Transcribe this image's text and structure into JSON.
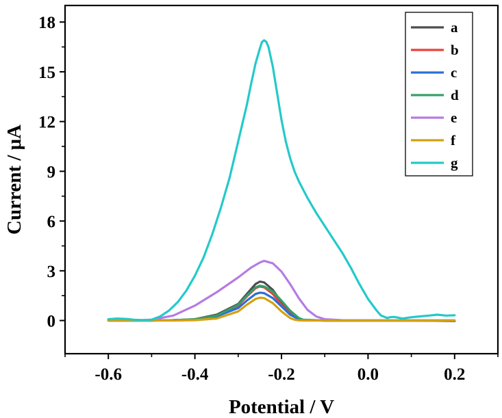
{
  "chart_data": {
    "type": "line",
    "xlabel": "Potential / V",
    "ylabel": "Current / μA",
    "xlim": [
      -0.7,
      0.3
    ],
    "ylim": [
      -2,
      19
    ],
    "x_ticks": [
      "-0.6",
      "-0.4",
      "-0.2",
      "0.0",
      "0.2"
    ],
    "x_tick_values": [
      -0.6,
      -0.4,
      -0.2,
      0.0,
      0.2
    ],
    "y_ticks": [
      "0",
      "3",
      "6",
      "9",
      "12",
      "15",
      "18"
    ],
    "y_tick_values": [
      0,
      3,
      6,
      9,
      12,
      15,
      18
    ],
    "grid": false,
    "legend_position": "top-right",
    "series": [
      {
        "name": "a",
        "color": "#4d4d4d",
        "x": [
          -0.6,
          -0.5,
          -0.45,
          -0.4,
          -0.35,
          -0.3,
          -0.28,
          -0.26,
          -0.25,
          -0.24,
          -0.22,
          -0.2,
          -0.18,
          -0.16,
          -0.15,
          -0.1,
          0.0,
          0.1,
          0.2
        ],
        "y": [
          0,
          0,
          0.02,
          0.08,
          0.35,
          1.0,
          1.6,
          2.2,
          2.35,
          2.3,
          1.85,
          1.1,
          0.45,
          0.1,
          0.03,
          0,
          0,
          0,
          -0.03
        ]
      },
      {
        "name": "b",
        "color": "#e8413a",
        "x": [
          -0.6,
          -0.5,
          -0.45,
          -0.4,
          -0.35,
          -0.3,
          -0.28,
          -0.26,
          -0.25,
          -0.24,
          -0.22,
          -0.2,
          -0.18,
          -0.16,
          -0.15,
          -0.1,
          0.0,
          0.1,
          0.2
        ],
        "y": [
          0,
          0,
          0.02,
          0.07,
          0.3,
          0.9,
          1.45,
          1.95,
          2.05,
          2.0,
          1.6,
          0.95,
          0.4,
          0.08,
          0.02,
          0,
          0,
          0,
          0
        ]
      },
      {
        "name": "c",
        "color": "#2a6fd6",
        "x": [
          -0.6,
          -0.5,
          -0.45,
          -0.4,
          -0.35,
          -0.3,
          -0.28,
          -0.26,
          -0.25,
          -0.24,
          -0.22,
          -0.2,
          -0.18,
          -0.16,
          -0.15,
          -0.1,
          0.0,
          0.1,
          0.2
        ],
        "y": [
          0,
          0,
          0.02,
          0.06,
          0.25,
          0.75,
          1.2,
          1.6,
          1.68,
          1.65,
          1.35,
          0.85,
          0.35,
          0.08,
          0.02,
          0,
          0,
          0,
          0
        ]
      },
      {
        "name": "d",
        "color": "#34a06a",
        "x": [
          -0.6,
          -0.5,
          -0.45,
          -0.4,
          -0.35,
          -0.3,
          -0.28,
          -0.26,
          -0.25,
          -0.24,
          -0.22,
          -0.2,
          -0.18,
          -0.16,
          -0.15,
          -0.1,
          0.0,
          0.1,
          0.2
        ],
        "y": [
          0,
          0,
          0.02,
          0.07,
          0.3,
          0.95,
          1.5,
          2.0,
          2.1,
          2.05,
          1.75,
          1.2,
          0.6,
          0.15,
          0.05,
          0,
          0,
          0,
          0
        ]
      },
      {
        "name": "e",
        "color": "#b57be3",
        "x": [
          -0.6,
          -0.55,
          -0.5,
          -0.45,
          -0.4,
          -0.35,
          -0.3,
          -0.27,
          -0.25,
          -0.24,
          -0.22,
          -0.2,
          -0.18,
          -0.16,
          -0.14,
          -0.12,
          -0.1,
          -0.05,
          0.0,
          0.1,
          0.2
        ],
        "y": [
          0,
          0,
          0.05,
          0.3,
          0.9,
          1.7,
          2.6,
          3.2,
          3.5,
          3.6,
          3.45,
          2.95,
          2.2,
          1.35,
          0.65,
          0.25,
          0.08,
          0.01,
          0,
          0,
          0
        ]
      },
      {
        "name": "f",
        "color": "#d3a112",
        "x": [
          -0.6,
          -0.5,
          -0.45,
          -0.4,
          -0.35,
          -0.3,
          -0.28,
          -0.26,
          -0.25,
          -0.24,
          -0.22,
          -0.2,
          -0.18,
          -0.17,
          -0.16,
          -0.15,
          -0.1,
          0.0,
          0.1,
          0.2
        ],
        "y": [
          0,
          0,
          0,
          0.02,
          0.12,
          0.55,
          0.95,
          1.3,
          1.38,
          1.35,
          1.05,
          0.55,
          0.15,
          0.05,
          0.01,
          0,
          0,
          0,
          0,
          0
        ]
      },
      {
        "name": "g",
        "color": "#24c9c9",
        "x": [
          -0.6,
          -0.58,
          -0.56,
          -0.54,
          -0.52,
          -0.5,
          -0.48,
          -0.46,
          -0.44,
          -0.42,
          -0.4,
          -0.38,
          -0.36,
          -0.34,
          -0.32,
          -0.3,
          -0.28,
          -0.27,
          -0.26,
          -0.25,
          -0.245,
          -0.24,
          -0.235,
          -0.23,
          -0.22,
          -0.21,
          -0.2,
          -0.19,
          -0.18,
          -0.17,
          -0.16,
          -0.14,
          -0.12,
          -0.1,
          -0.08,
          -0.06,
          -0.04,
          -0.02,
          0.0,
          0.02,
          0.03,
          0.04,
          0.045,
          0.05,
          0.06,
          0.08,
          0.1,
          0.12,
          0.14,
          0.16,
          0.18,
          0.2
        ],
        "y": [
          0.08,
          0.12,
          0.1,
          0.05,
          0.02,
          0.05,
          0.25,
          0.6,
          1.1,
          1.8,
          2.7,
          3.8,
          5.2,
          6.8,
          8.6,
          10.8,
          13.0,
          14.3,
          15.5,
          16.4,
          16.8,
          16.9,
          16.8,
          16.5,
          15.3,
          13.7,
          12.1,
          10.8,
          9.8,
          9.0,
          8.4,
          7.4,
          6.5,
          5.7,
          4.9,
          4.1,
          3.2,
          2.2,
          1.3,
          0.6,
          0.3,
          0.2,
          0.15,
          0.2,
          0.22,
          0.12,
          0.2,
          0.25,
          0.3,
          0.35,
          0.3,
          0.32
        ]
      }
    ]
  }
}
